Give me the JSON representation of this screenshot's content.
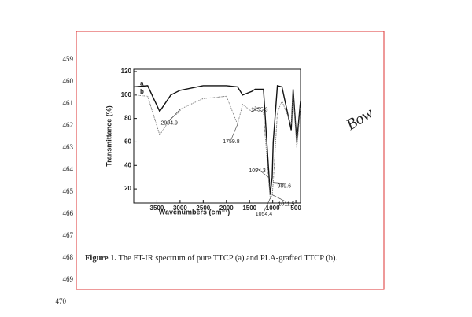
{
  "line_numbers": [
    "459",
    "460",
    "461",
    "462",
    "463",
    "464",
    "465",
    "466",
    "467",
    "468",
    "469",
    "470"
  ],
  "handwritten_note": "Bow",
  "chart_data": {
    "type": "line",
    "y_label": "Transmittance (%)",
    "x_label": "Wavenumbers (cm⁻¹)",
    "x": [
      4000,
      3700,
      3440,
      3200,
      3000,
      2995,
      2500,
      2000,
      1760,
      1650,
      1455,
      1380,
      1200,
      1094,
      1054,
      1011,
      990,
      900,
      800,
      600,
      560,
      480,
      400
    ],
    "series": [
      {
        "name": "a",
        "color": "#111111",
        "values": [
          107,
          108,
          86,
          100,
          104,
          104,
          108,
          108,
          107,
          100,
          103,
          105,
          105,
          40,
          15,
          30,
          60,
          108,
          107,
          70,
          105,
          60,
          95
        ]
      },
      {
        "name": "b",
        "color": "#777777",
        "values": [
          100,
          99,
          66,
          80,
          86,
          88,
          97,
          99,
          75,
          92,
          86,
          90,
          85,
          30,
          12,
          15,
          25,
          85,
          95,
          75,
          100,
          55,
          90
        ]
      }
    ],
    "xlim": [
      4000,
      400
    ],
    "ylim": [
      8,
      122
    ],
    "xticks": [
      3500,
      3000,
      2500,
      2000,
      1500,
      1000,
      500
    ],
    "yticks": [
      20,
      40,
      60,
      80,
      100,
      120
    ],
    "annotations": [
      {
        "label": "2994.9",
        "x": 2994.9,
        "y": 88
      },
      {
        "label": "1759.8",
        "x": 1759.8,
        "y": 75
      },
      {
        "label": "1455.3",
        "x": 1455.3,
        "y": 86
      },
      {
        "label": "1094.3",
        "x": 1094.3,
        "y": 30
      },
      {
        "label": "1054.4",
        "x": 1054.4,
        "y": 12
      },
      {
        "label": "989.6",
        "x": 989.6,
        "y": 25
      },
      {
        "label": "1011.5",
        "x": 1011.5,
        "y": 15
      }
    ]
  },
  "caption": {
    "label": "Figure 1.",
    "text": "The FT-IR spectrum of pure TTCP (a) and PLA-grafted TTCP (b)."
  }
}
